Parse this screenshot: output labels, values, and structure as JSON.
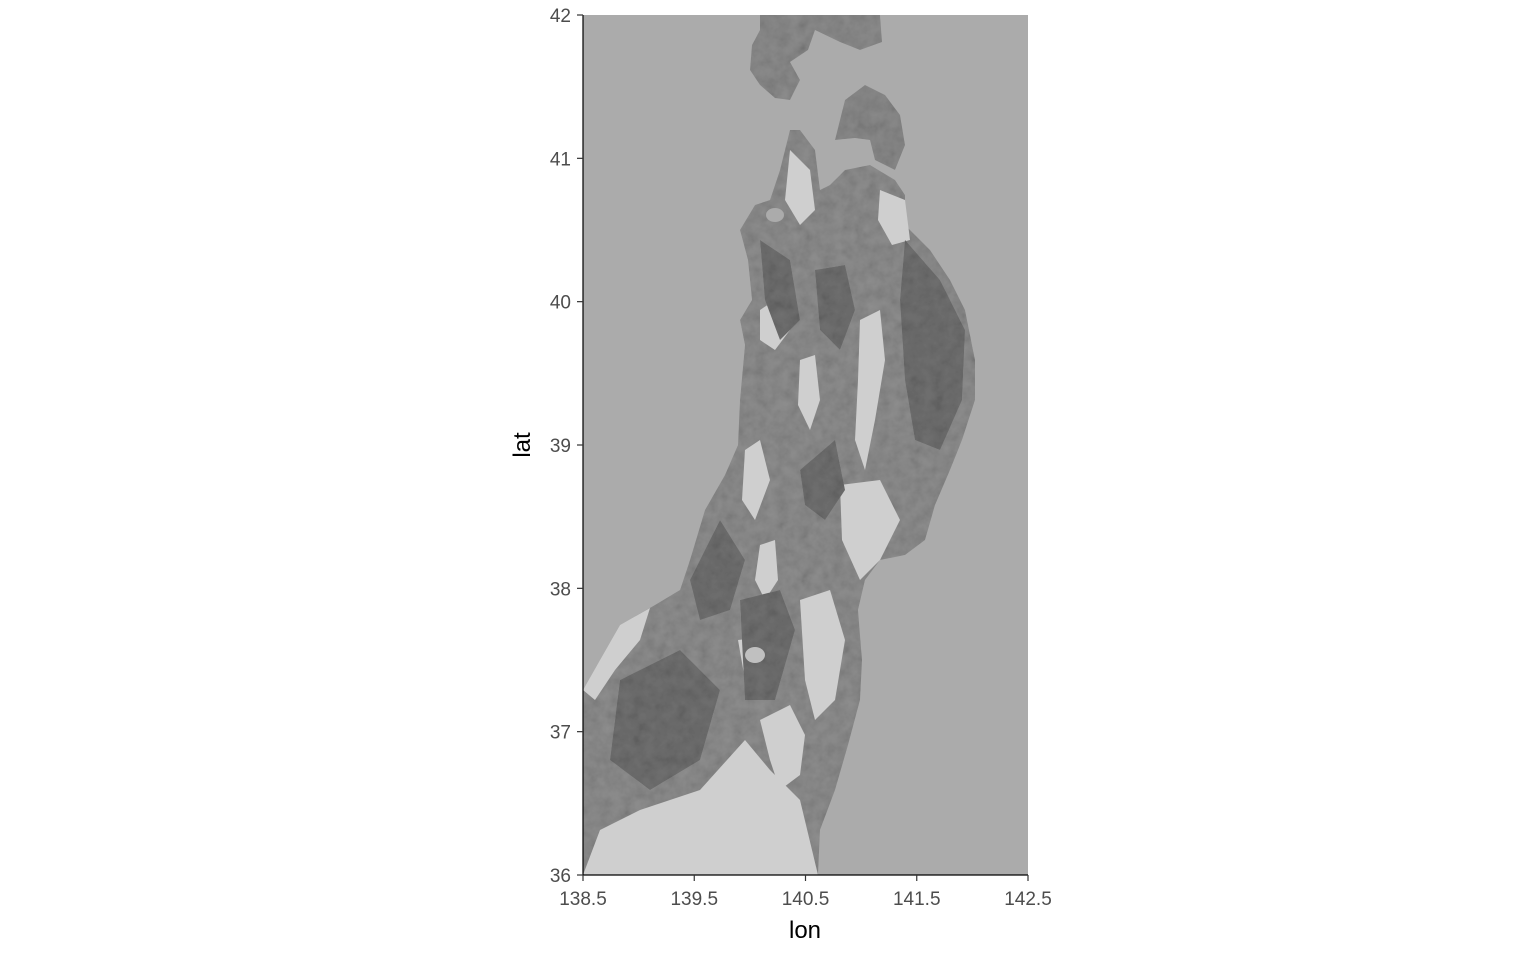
{
  "chart_data": {
    "type": "raster-map",
    "title": "",
    "xlabel": "lon",
    "ylabel": "lat",
    "xlim": [
      138.5,
      142.5
    ],
    "ylim": [
      36,
      42
    ],
    "x_ticks": [
      138.5,
      139.5,
      140.5,
      141.5,
      142.5
    ],
    "y_ticks": [
      36,
      37,
      38,
      39,
      40,
      41,
      42
    ],
    "x_tick_labels": [
      "138.5",
      "139.5",
      "140.5",
      "141.5",
      "142.5"
    ],
    "y_tick_labels": [
      "36",
      "37",
      "38",
      "39",
      "40",
      "41",
      "42"
    ],
    "fill": "grayscale hillshade of northern Honshu (Tohoku)",
    "grid": false,
    "legend": "none",
    "colors": {
      "sea": "#ababab",
      "lowland": "#d4d4d4",
      "terrain": "#8a8a8a",
      "relief_dark": "#666666"
    }
  }
}
